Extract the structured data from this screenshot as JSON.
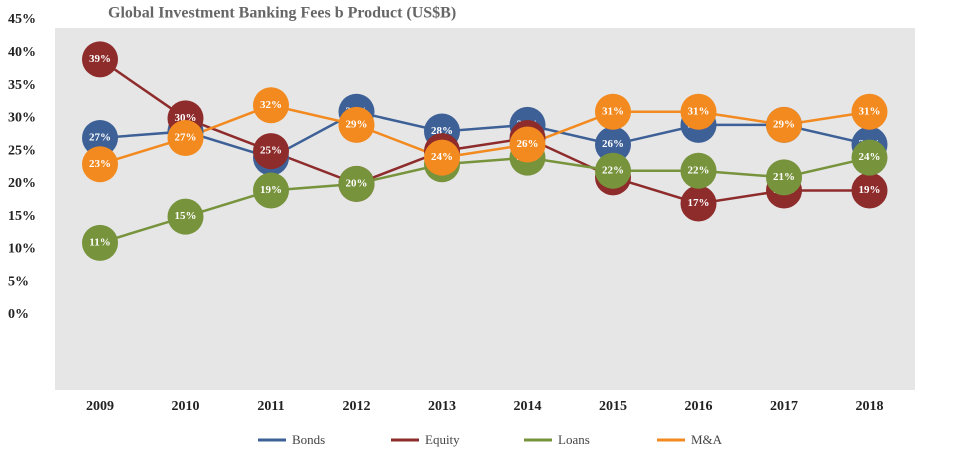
{
  "chart_data": {
    "type": "line",
    "title": "Global Investment Banking Fees b Product (US$B)",
    "categories": [
      "2009",
      "2010",
      "2011",
      "2012",
      "2013",
      "2014",
      "2015",
      "2016",
      "2017",
      "2018"
    ],
    "ylim": [
      0,
      45
    ],
    "yticks": [
      {
        "value": 0,
        "label": "0%"
      },
      {
        "value": 5,
        "label": "5%"
      },
      {
        "value": 10,
        "label": "10%"
      },
      {
        "value": 15,
        "label": "15%"
      },
      {
        "value": 20,
        "label": "20%"
      },
      {
        "value": 25,
        "label": "25%"
      },
      {
        "value": 30,
        "label": "30%"
      },
      {
        "value": 35,
        "label": "35%"
      },
      {
        "value": 40,
        "label": "40%"
      },
      {
        "value": 45,
        "label": "45%"
      }
    ],
    "series": [
      {
        "name": "Bonds",
        "color": "#3d6096",
        "values": [
          27,
          28,
          24,
          31,
          28,
          29,
          26,
          29,
          29,
          26
        ],
        "value_labels": [
          "27%",
          "28%",
          "24%",
          "31%",
          "28%",
          "29%",
          "26%",
          "29%",
          "29%",
          "26%"
        ]
      },
      {
        "name": "Equity",
        "color": "#8e2b2b",
        "values": [
          39,
          30,
          25,
          20,
          25,
          27,
          21,
          17,
          19,
          19
        ],
        "value_labels": [
          "39%",
          "30%",
          "25%",
          "20%",
          "25%",
          "27%",
          "21%",
          "17%",
          "19%",
          "19%"
        ]
      },
      {
        "name": "Loans",
        "color": "#77933c",
        "values": [
          11,
          15,
          19,
          20,
          23,
          24,
          22,
          22,
          21,
          24
        ],
        "value_labels": [
          "11%",
          "15%",
          "19%",
          "20%",
          "23%",
          "24%",
          "22%",
          "22%",
          "21%",
          "24%"
        ]
      },
      {
        "name": "M&A",
        "color": "#f28a1f",
        "values": [
          23,
          27,
          32,
          29,
          24,
          26,
          31,
          31,
          29,
          31
        ],
        "value_labels": [
          "23%",
          "27%",
          "32%",
          "29%",
          "24%",
          "26%",
          "31%",
          "31%",
          "29%",
          "31%"
        ]
      }
    ],
    "legend": "bottom",
    "background": "#e6e6e7"
  }
}
